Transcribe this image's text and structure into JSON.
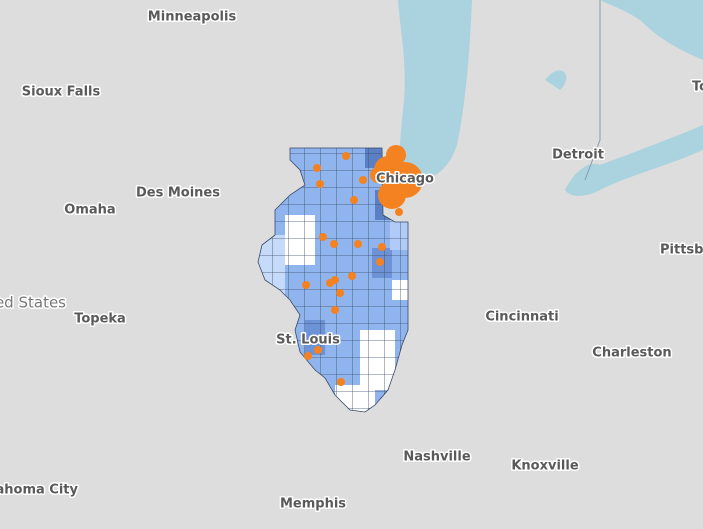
{
  "labels": [
    "Minneapolis",
    "Sioux Falls",
    "Des Moines",
    "Omaha",
    "Chicago",
    "Detroit",
    "Pittsbu",
    "To",
    "ed States",
    "Topeka",
    "St. Louis",
    "Cincinnati",
    "Charleston",
    "Nashville",
    "Knoxville",
    "lahoma City",
    "Memphis"
  ]
}
